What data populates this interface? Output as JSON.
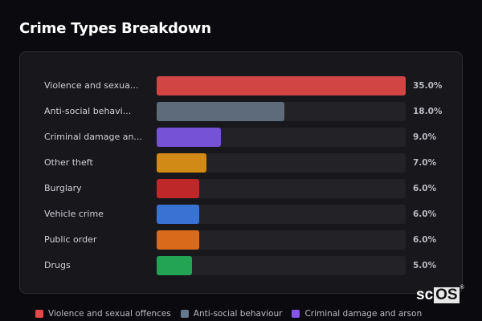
{
  "header": {
    "title": "Crime Types Breakdown"
  },
  "chart_data": {
    "type": "bar",
    "orientation": "horizontal",
    "title": "Crime Types Breakdown",
    "categories": [
      "Violence and sexual offences",
      "Anti-social behaviour",
      "Criminal damage and arson",
      "Other theft",
      "Burglary",
      "Vehicle crime",
      "Public order",
      "Drugs"
    ],
    "display_labels": [
      "Violence and sexua...",
      "Anti-social behavi...",
      "Criminal damage an...",
      "Other theft",
      "Burglary",
      "Vehicle crime",
      "Public order",
      "Drugs"
    ],
    "values": [
      35.0,
      18.0,
      9.0,
      7.0,
      6.0,
      6.0,
      6.0,
      5.0
    ],
    "value_labels": [
      "35.0%",
      "18.0%",
      "9.0%",
      "7.0%",
      "6.0%",
      "6.0%",
      "6.0%",
      "5.0%"
    ],
    "colors": [
      "#d24545",
      "#5e6b7a",
      "#7652d6",
      "#d18a16",
      "#bf2828",
      "#3a72d4",
      "#d96a1c",
      "#22a454"
    ],
    "xlabel": "",
    "ylabel": "",
    "unit": "%",
    "max_value": 35.0,
    "grid": false,
    "legend_position": "bottom"
  },
  "rows": [
    {
      "label": "Violence and sexua...",
      "value": "35.0%"
    },
    {
      "label": "Anti-social behavi...",
      "value": "18.0%"
    },
    {
      "label": "Criminal damage an...",
      "value": "9.0%"
    },
    {
      "label": "Other theft",
      "value": "7.0%"
    },
    {
      "label": "Burglary",
      "value": "6.0%"
    },
    {
      "label": "Vehicle crime",
      "value": "6.0%"
    },
    {
      "label": "Public order",
      "value": "6.0%"
    },
    {
      "label": "Drugs",
      "value": "5.0%"
    }
  ],
  "legend": [
    {
      "label": "Violence and sexual offences",
      "color": "#e54848"
    },
    {
      "label": "Anti-social behaviour",
      "color": "#66788c"
    },
    {
      "label": "Criminal damage and arson",
      "color": "#8555e8"
    }
  ],
  "logo": {
    "prefix": "sc",
    "box": "OS",
    "mark": "®"
  }
}
